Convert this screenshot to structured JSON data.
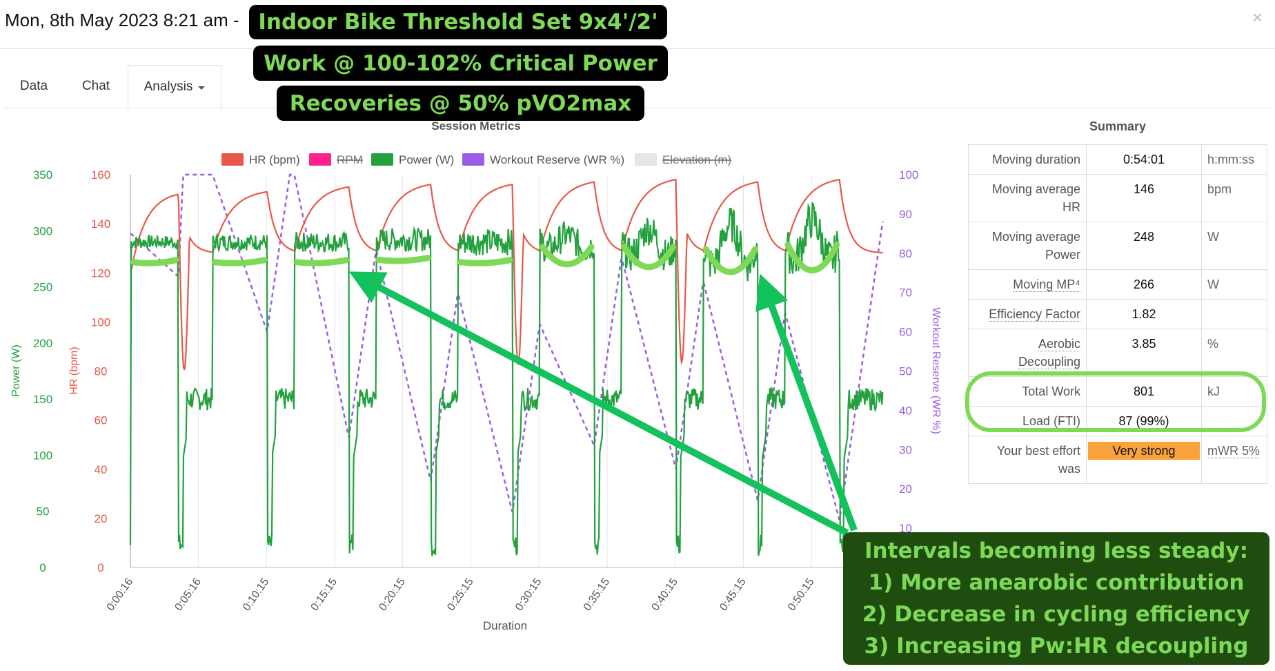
{
  "header": {
    "title": "Mon, 8th May 2023 8:21 am -",
    "close_label": "×"
  },
  "tabs": [
    {
      "label": "Data"
    },
    {
      "label": "Chat"
    },
    {
      "label": "Analysis"
    }
  ],
  "banners": [
    "Indoor Bike Threshold Set 9x4'/2'",
    "Work @ 100-102% Critical Power",
    "Recoveries @ 50% pVO2max"
  ],
  "note": {
    "lines": [
      "Intervals becoming less steady:",
      "1) More anearobic contribution",
      "2) Decrease in cycling efficiency",
      "3) Increasing Pw:HR decoupling"
    ]
  },
  "colors": {
    "hr": "#e8584a",
    "rpm": "#ff1f8f",
    "power": "#22a13d",
    "wr": "#9b5de5",
    "elevation": "#e6e6e6",
    "annotation": "#7ed957",
    "arrow": "#13c25c",
    "badge": "#f9a33c"
  },
  "chart_data": {
    "type": "line",
    "title": "Session Metrics",
    "xlabel": "Duration",
    "ylabel_power": "Power (W)",
    "ylabel_hr": "HR (bpm)",
    "ylabel_wr": "Workout Reserve (WR %)",
    "x_ticks": [
      "0:00:16",
      "0:05:16",
      "0:10:15",
      "0:15:15",
      "0:20:15",
      "0:25:15",
      "0:30:15",
      "0:35:15",
      "0:40:15",
      "0:45:15",
      "0:50:15"
    ],
    "power_ticks": [
      "350",
      "300",
      "250",
      "200",
      "150",
      "100",
      "50",
      "0"
    ],
    "hr_ticks": [
      "160",
      "140",
      "120",
      "100",
      "80",
      "60",
      "40",
      "20",
      "0"
    ],
    "wr_ticks": [
      "100",
      "90",
      "80",
      "70",
      "60",
      "50",
      "40",
      "30",
      "20",
      "10"
    ],
    "power_range": [
      0,
      350
    ],
    "hr_range": [
      0,
      160
    ],
    "wr_range": [
      0,
      100
    ],
    "duration_range_min": [
      0.27,
      55.5
    ],
    "legend": [
      {
        "label": "HR (bpm)",
        "color": "#e8584a",
        "hidden": false
      },
      {
        "label": "RPM",
        "color": "#ff1f8f",
        "hidden": true
      },
      {
        "label": "Power (W)",
        "color": "#22a13d",
        "hidden": false
      },
      {
        "label": "Workout Reserve (WR %)",
        "color": "#9b5de5",
        "hidden": false
      },
      {
        "label": "Elevation (m)",
        "color": "#e6e6e6",
        "hidden": true
      }
    ],
    "intervals": [
      {
        "start_min": 0.3,
        "end_min": 3.8,
        "power_w": 290,
        "hr_end_bpm": 152,
        "wr_end_pct": 74
      },
      {
        "start_min": 6.3,
        "end_min": 10.3,
        "power_w": 290,
        "hr_end_bpm": 153,
        "wr_end_pct": 60
      },
      {
        "start_min": 12.3,
        "end_min": 16.3,
        "power_w": 290,
        "hr_end_bpm": 155,
        "wr_end_pct": 33
      },
      {
        "start_min": 18.3,
        "end_min": 22.3,
        "power_w": 292,
        "hr_end_bpm": 156,
        "wr_end_pct": 22
      },
      {
        "start_min": 24.3,
        "end_min": 28.3,
        "power_w": 290,
        "hr_end_bpm": 156,
        "wr_end_pct": 14
      },
      {
        "start_min": 30.3,
        "end_min": 34.3,
        "power_w": 290,
        "hr_end_bpm": 157,
        "wr_end_pct": 31
      },
      {
        "start_min": 36.3,
        "end_min": 40.3,
        "power_w": 290,
        "hr_end_bpm": 158,
        "wr_end_pct": 25
      },
      {
        "start_min": 42.3,
        "end_min": 46.3,
        "power_w": 288,
        "hr_end_bpm": 157,
        "wr_end_pct": 17
      },
      {
        "start_min": 48.3,
        "end_min": 52.3,
        "power_w": 292,
        "hr_end_bpm": 158,
        "wr_end_pct": 12
      }
    ],
    "recovery_power_w": 150,
    "hr_start_bpm": 120,
    "hr_end_bpm": 128,
    "wr_start_pct": 85
  },
  "summary": {
    "title": "Summary",
    "rows": [
      {
        "label": "Moving duration",
        "value": "0:54:01",
        "unit": "h:mm:ss"
      },
      {
        "label": "Moving average HR",
        "value": "146",
        "unit": "bpm"
      },
      {
        "label": "Moving average Power",
        "value": "248",
        "unit": "W"
      },
      {
        "label": "Moving MP⁴",
        "value": "266",
        "unit": "W"
      },
      {
        "label": "Efficiency Factor",
        "value": "1.82",
        "unit": ""
      },
      {
        "label": "Aerobic Decoupling",
        "value": "3.85",
        "unit": "%"
      },
      {
        "label": "Total Work",
        "value": "801",
        "unit": "kJ"
      },
      {
        "label": "Load (FTI)",
        "value": "87 (99%)",
        "unit": ""
      },
      {
        "label": "Your best effort was",
        "value": "Very strong",
        "unit": "mWR 5%"
      }
    ]
  }
}
